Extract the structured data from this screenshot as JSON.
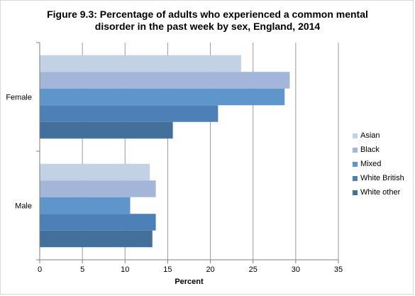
{
  "chart_data": {
    "type": "bar",
    "orientation": "horizontal",
    "title_line1": "Figure 9.3: Percentage of adults who experienced a common mental",
    "title_line2": "disorder in the past week by sex, England, 2014",
    "xlabel": "Percent",
    "ylabel": "",
    "xlim": [
      0,
      35
    ],
    "xticks": [
      0,
      5,
      10,
      15,
      20,
      25,
      30,
      35
    ],
    "grid": true,
    "legend_position": "right",
    "categories": [
      "Female",
      "Male"
    ],
    "series": [
      {
        "name": "Asian",
        "color": "#c3d1e4",
        "values": [
          23.6,
          12.9
        ]
      },
      {
        "name": "Black",
        "color": "#a3b5d8",
        "values": [
          29.3,
          13.6
        ]
      },
      {
        "name": "Mixed",
        "color": "#5e96cb",
        "values": [
          28.7,
          10.6
        ]
      },
      {
        "name": "White British",
        "color": "#4d80b7",
        "values": [
          20.9,
          13.6
        ]
      },
      {
        "name": "White other",
        "color": "#436f9b",
        "values": [
          15.6,
          13.2
        ]
      }
    ]
  }
}
